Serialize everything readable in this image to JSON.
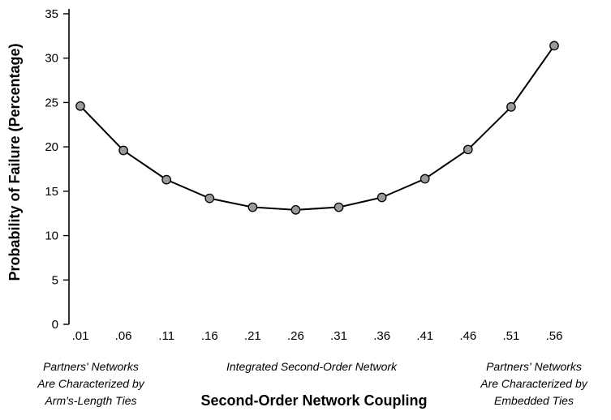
{
  "chart_data": {
    "type": "line",
    "title": "",
    "xlabel": "Second-Order Network Coupling",
    "ylabel": "Probability of Failure (Percentage)",
    "categories": [
      ".01",
      ".06",
      ".11",
      ".16",
      ".21",
      ".26",
      ".31",
      ".36",
      ".41",
      ".46",
      ".51",
      ".56"
    ],
    "x": [
      0.01,
      0.06,
      0.11,
      0.16,
      0.21,
      0.26,
      0.31,
      0.36,
      0.41,
      0.46,
      0.51,
      0.56
    ],
    "series": [
      {
        "values": [
          24.6,
          19.6,
          16.3,
          14.2,
          13.2,
          12.9,
          13.2,
          14.3,
          16.4,
          19.7,
          24.5,
          31.4
        ]
      }
    ],
    "ylim": [
      0,
      35
    ],
    "yticks": [
      "0",
      "5",
      "10",
      "15",
      "20",
      "25",
      "30",
      "35"
    ],
    "grid": false,
    "legend": "none",
    "marker": "circle",
    "colors": {
      "line": "#000000",
      "marker_fill": "#9a9a9a",
      "marker_stroke": "#000000",
      "axis": "#000000"
    },
    "annotations": {
      "left": [
        "Partners' Networks",
        "Are Characterized by",
        "Arm's-Length Ties"
      ],
      "center": [
        "Integrated Second-Order Network"
      ],
      "right": [
        "Partners'  Networks",
        "Are Characterized by",
        "Embedded Ties"
      ]
    }
  }
}
